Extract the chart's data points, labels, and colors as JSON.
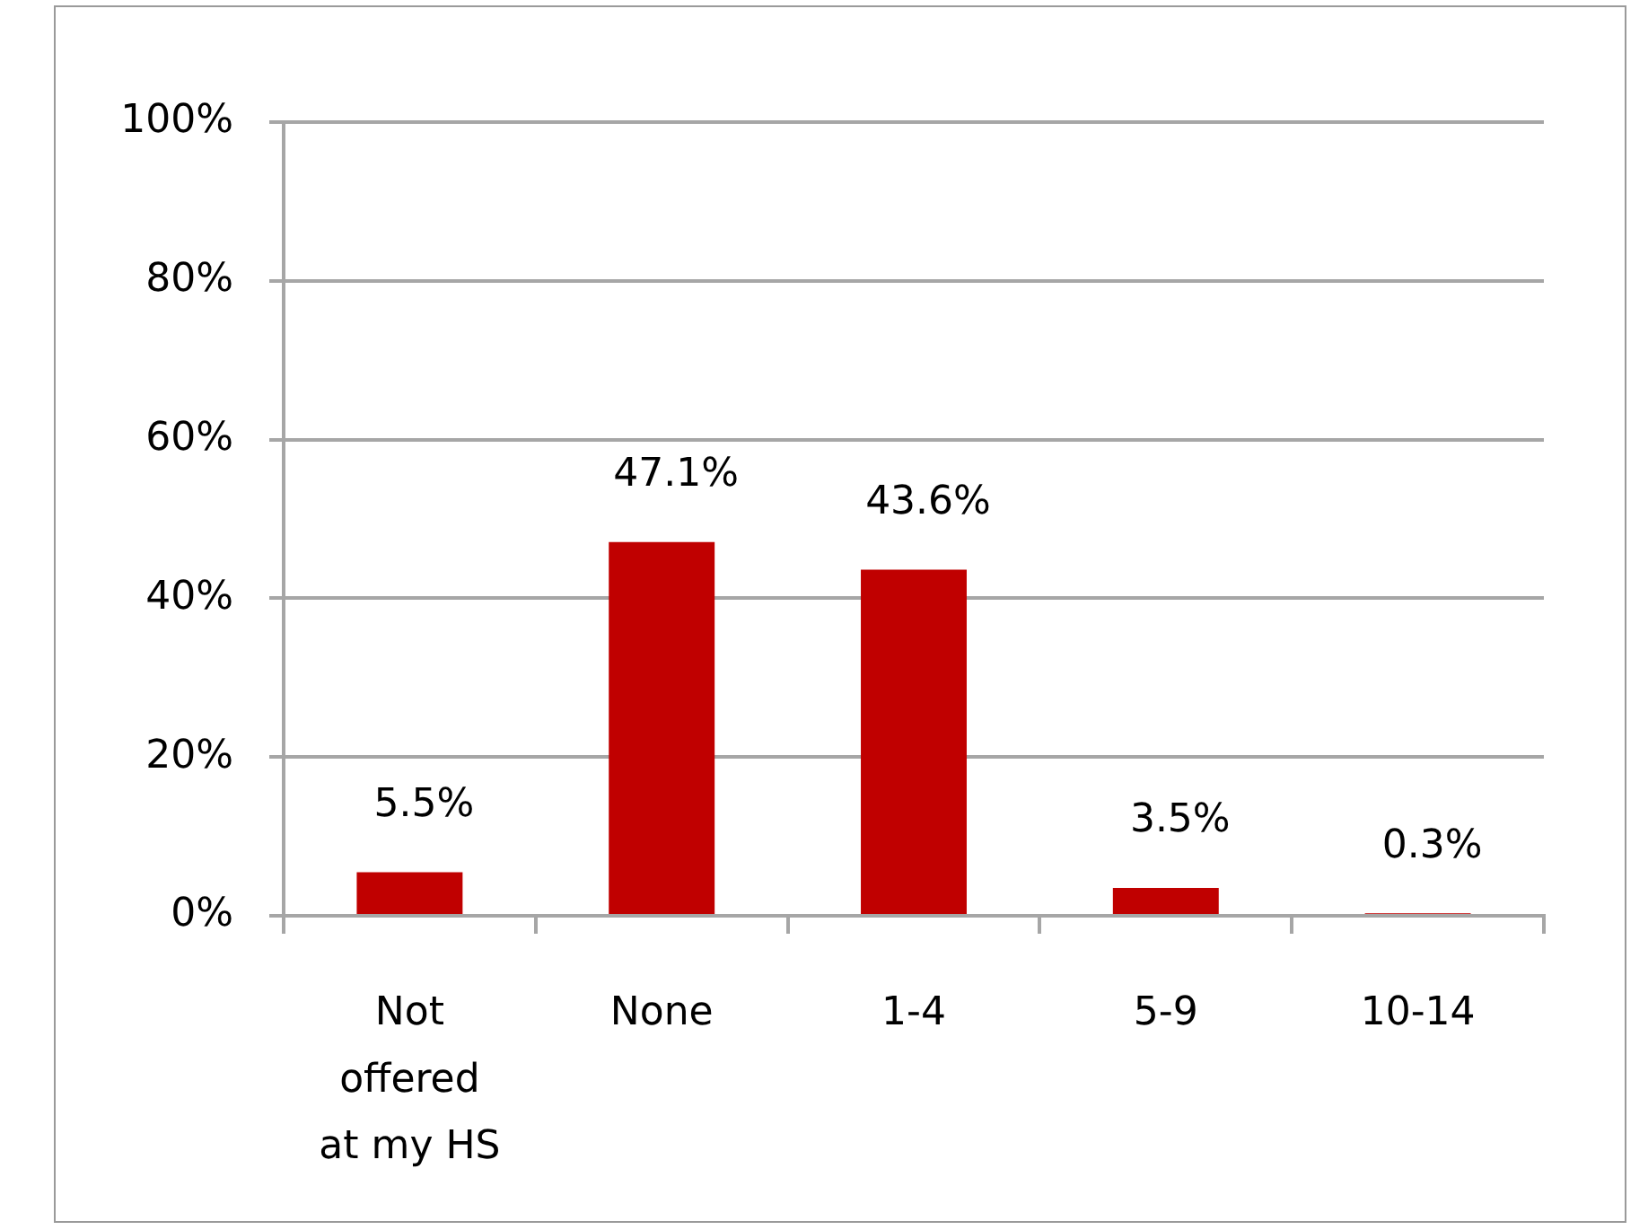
{
  "chart_data": {
    "type": "bar",
    "categories": [
      "Not offered at my HS",
      "None",
      "1-4",
      "5-9",
      "10-14"
    ],
    "values": [
      5.5,
      47.1,
      43.6,
      3.5,
      0.3
    ],
    "value_labels": [
      "5.5%",
      "47.1%",
      "43.6%",
      "3.5%",
      "0.3%"
    ],
    "color": "#c00000",
    "ylim": [
      0,
      100
    ],
    "yticks": [
      {
        "value": 0,
        "label": "0%"
      },
      {
        "value": 20,
        "label": "20%"
      },
      {
        "value": 40,
        "label": "40%"
      },
      {
        "value": 60,
        "label": "60%"
      },
      {
        "value": 80,
        "label": "80%"
      },
      {
        "value": 100,
        "label": "100%"
      }
    ],
    "grid": "y"
  }
}
